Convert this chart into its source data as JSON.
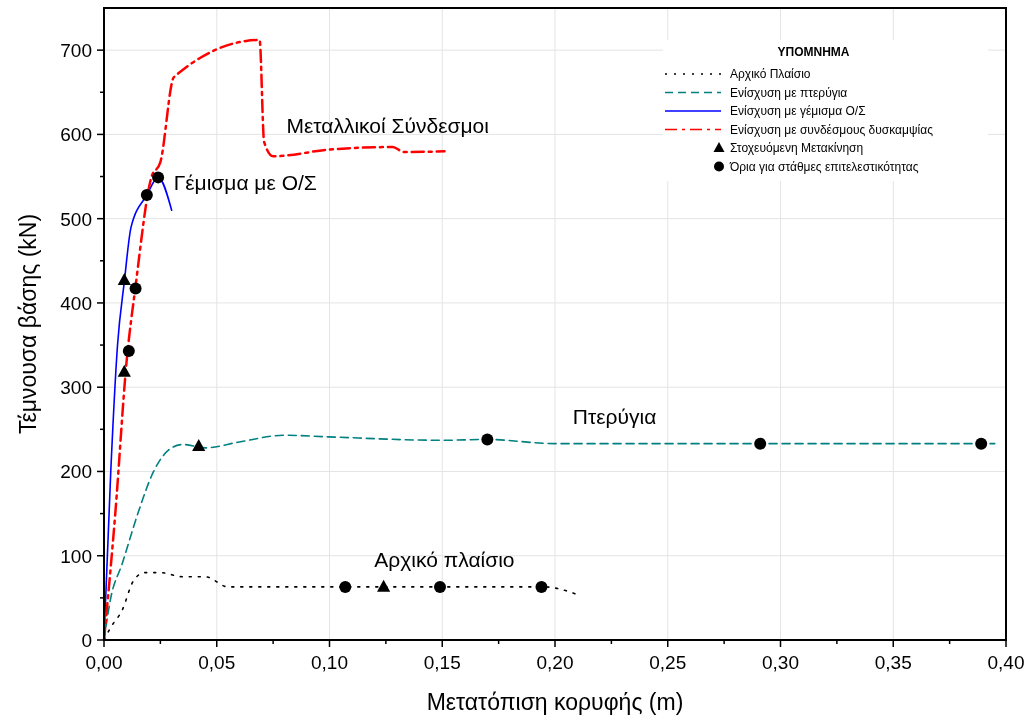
{
  "chart_data": {
    "type": "line",
    "xlabel": "Μετατόπιση κορυφής (m)",
    "ylabel": "Τέμνουσα βάσης (kN)",
    "legend_title": "ΥΠΟΜΝΗΜΑ",
    "xlim": [
      0,
      0.4
    ],
    "ylim": [
      0,
      750
    ],
    "xticks": [
      {
        "value": 0,
        "label": "0,00"
      },
      {
        "value": 0.025,
        "label": null
      },
      {
        "value": 0.05,
        "label": "0,05"
      },
      {
        "value": 0.075,
        "label": null
      },
      {
        "value": 0.1,
        "label": "0,10"
      },
      {
        "value": 0.125,
        "label": null
      },
      {
        "value": 0.15,
        "label": "0,15"
      },
      {
        "value": 0.175,
        "label": null
      },
      {
        "value": 0.2,
        "label": "0,20"
      },
      {
        "value": 0.225,
        "label": null
      },
      {
        "value": 0.25,
        "label": "0,25"
      },
      {
        "value": 0.275,
        "label": null
      },
      {
        "value": 0.3,
        "label": "0,30"
      },
      {
        "value": 0.325,
        "label": null
      },
      {
        "value": 0.35,
        "label": "0,35"
      },
      {
        "value": 0.375,
        "label": null
      },
      {
        "value": 0.4,
        "label": "0,40"
      }
    ],
    "yticks": [
      0,
      {
        "value": 50,
        "label": null
      },
      100,
      {
        "value": 150,
        "label": null
      },
      200,
      {
        "value": 250,
        "label": null
      },
      300,
      {
        "value": 350,
        "label": null
      },
      400,
      {
        "value": 450,
        "label": null
      },
      500,
      {
        "value": 550,
        "label": null
      },
      600,
      {
        "value": 650,
        "label": null
      },
      700
    ],
    "grid": true,
    "legend": "top right",
    "series": [
      {
        "name": "Αρχικό Πλαίσιο",
        "color": "#000000",
        "line_style": "dotted",
        "marker": "none",
        "x": [
          0,
          0.003,
          0.008,
          0.013,
          0.018,
          0.025,
          0.035,
          0.045,
          0.055,
          0.1,
          0.15,
          0.195,
          0.211
        ],
        "values": [
          0,
          15,
          35,
          70,
          80,
          80,
          75,
          75,
          63,
          63,
          63,
          63,
          53
        ]
      },
      {
        "name": "Ενίσχυση με πτερύγια",
        "color": "#008080",
        "line_style": "dashed",
        "marker": "none",
        "x": [
          0,
          0.003,
          0.008,
          0.015,
          0.022,
          0.03,
          0.035,
          0.045,
          0.06,
          0.08,
          0.1,
          0.15,
          0.17,
          0.2,
          0.29,
          0.39,
          0.395
        ],
        "values": [
          0,
          50,
          90,
          150,
          200,
          228,
          232,
          228,
          235,
          243,
          241,
          237,
          238,
          233,
          233,
          233,
          233
        ]
      },
      {
        "name": "Ενίσχυση με γέμισμα Ο/Σ",
        "color": "#0000ff",
        "line_style": "solid",
        "marker": "none",
        "x": [
          0,
          0.003,
          0.006,
          0.009,
          0.012,
          0.019,
          0.024,
          0.03
        ],
        "values": [
          0,
          200,
          350,
          425,
          490,
          528,
          549,
          510
        ]
      },
      {
        "name": "Ενίσχυση με συνδέσμους δυσκαμψίας",
        "color": "#ff0000",
        "line_style": "dashdot",
        "marker": "none",
        "x": [
          0,
          0.005,
          0.01,
          0.014,
          0.021,
          0.025,
          0.031,
          0.069,
          0.071,
          0.075,
          0.1,
          0.128,
          0.133,
          0.151
        ],
        "values": [
          0,
          150,
          330,
          420,
          549,
          567,
          668,
          712,
          591,
          574,
          582,
          585,
          579,
          580
        ]
      },
      {
        "name": "Στοχευόμενη Μετακίνηση",
        "type": "scatter",
        "color": "#000000",
        "marker": "triangle",
        "x": [
          0.124,
          0.042,
          0.009,
          0.009
        ],
        "values": [
          63,
          230,
          427,
          318
        ]
      },
      {
        "name": "Όρια για στάθμες επιτελεστικότητας",
        "type": "scatter",
        "color": "#000000",
        "marker": "circle",
        "x": [
          0.107,
          0.149,
          0.194,
          0.17,
          0.291,
          0.389,
          0.019,
          0.024,
          0.011,
          0.014
        ],
        "values": [
          63,
          63,
          63,
          238,
          233,
          233,
          528,
          549,
          343,
          417
        ]
      }
    ],
    "annotations": [
      {
        "text": "Μεταλλικοί Σύνδεσμοι",
        "x": 0.08,
        "y": 578
      },
      {
        "text": "Γέμισμα με Ο/Σ",
        "x": 0.03,
        "y": 510
      },
      {
        "text": "Πτερύγια",
        "x": 0.207,
        "y": 233
      },
      {
        "text": "Αρχικό πλαίσιο",
        "x": 0.119,
        "y": 63
      }
    ]
  }
}
